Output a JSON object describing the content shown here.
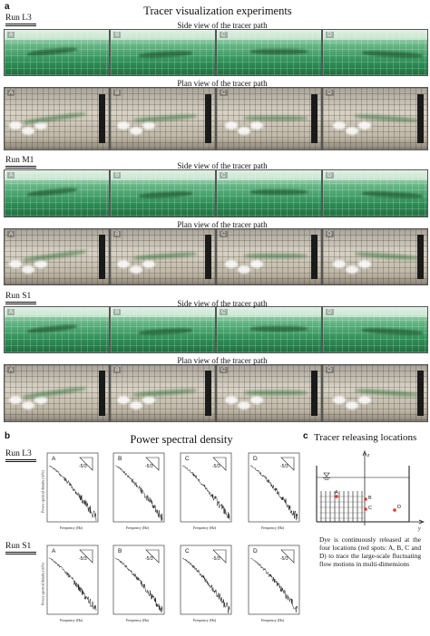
{
  "panel_a": {
    "letter": "a",
    "title": "Tracer visualization experiments",
    "side_caption": "Side view of the tracer path",
    "plan_caption": "Plan view of the tracer path",
    "runs": [
      "Run L3",
      "Run M1",
      "Run S1"
    ],
    "photo_labels": [
      "A",
      "B",
      "C",
      "D"
    ],
    "colors": {
      "side_water": "#3a9a62",
      "plan_floor": "#c8c1b2",
      "tracer": "#2a6b34"
    }
  },
  "panel_b": {
    "letter": "b",
    "title": "Power spectral density",
    "runs": [
      "Run L3",
      "Run S1"
    ],
    "plot_labels": [
      "A",
      "B",
      "C",
      "D"
    ],
    "ylabel": "Power spectral density (m²/s)",
    "xlabel": "Frequency (Hz)",
    "slope_label": "-5/3",
    "x_ticks": [
      "10⁻³",
      "10⁻²",
      "10⁻¹",
      "10⁰",
      "10¹"
    ],
    "y_ticks": [
      "10⁻¹",
      "10⁻²",
      "10⁻³",
      "10⁻⁴",
      "10⁻⁵",
      "10⁻⁶",
      "10⁻⁷",
      "10⁻⁸"
    ]
  },
  "panel_c": {
    "letter": "c",
    "title": "Tracer releasing locations",
    "axis_z": "z",
    "axis_y": "y",
    "points": [
      "A",
      "B",
      "C",
      "D"
    ],
    "caption": "Dye is continuously released at the four locations (red spots: A, B, C and D) to trace the large-scale fluctuating flow motions in multi-dimensions",
    "colors": {
      "release_point": "#d83a2a"
    }
  }
}
